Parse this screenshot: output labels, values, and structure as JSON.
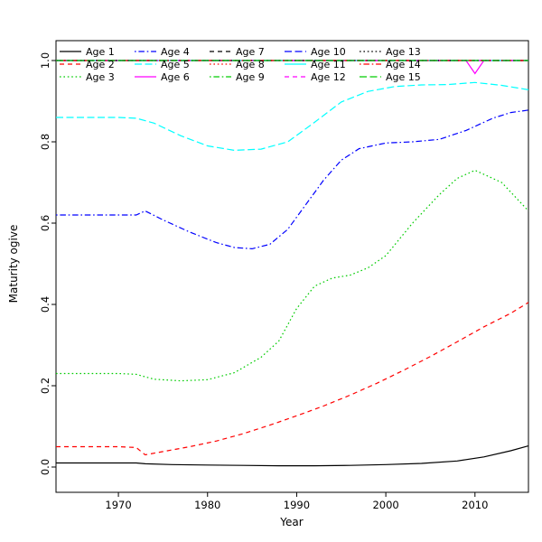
{
  "figure": {
    "background": "#FFFFFF"
  },
  "chart_data": {
    "type": "line",
    "title": "",
    "xlabel": "Year",
    "ylabel": "Maturity ogive",
    "xlim": [
      1963,
      2016
    ],
    "ylim": [
      0,
      1
    ],
    "xticks": [
      1970,
      1980,
      1990,
      2000,
      2010
    ],
    "xtick_labels": [
      "1970",
      "1980",
      "1990",
      "2000",
      "2010"
    ],
    "yticks": [
      0,
      0.2,
      0.4,
      0.6,
      0.8,
      1.0
    ],
    "ytick_labels": [
      "0.0",
      "0.2",
      "0.4",
      "0.6",
      "0.8",
      "1.0"
    ],
    "grid": false,
    "legend": {
      "position": "top-left",
      "ncol": 5,
      "nrow": 3,
      "order": "column-major",
      "border": false
    },
    "series": [
      {
        "name": "Age 1",
        "color": "#000000",
        "linetype": "solid",
        "x": [
          1963,
          1967,
          1970,
          1972,
          1973,
          1976,
          1980,
          1984,
          1988,
          1992,
          1996,
          2000,
          2004,
          2008,
          2011,
          2014,
          2016
        ],
        "y": [
          0.01,
          0.01,
          0.01,
          0.01,
          0.008,
          0.006,
          0.005,
          0.004,
          0.003,
          0.003,
          0.004,
          0.006,
          0.009,
          0.015,
          0.025,
          0.04,
          0.052
        ]
      },
      {
        "name": "Age 2",
        "color": "#FF0000",
        "linetype": "dashed",
        "x": [
          1963,
          1967,
          1970,
          1972,
          1973,
          1975,
          1978,
          1981,
          1984,
          1987,
          1990,
          1993,
          1996,
          1999,
          2002,
          2005,
          2008,
          2011,
          2014,
          2016
        ],
        "y": [
          0.05,
          0.05,
          0.05,
          0.048,
          0.03,
          0.038,
          0.05,
          0.064,
          0.082,
          0.103,
          0.126,
          0.15,
          0.177,
          0.206,
          0.238,
          0.272,
          0.308,
          0.345,
          0.378,
          0.405
        ]
      },
      {
        "name": "Age 3",
        "color": "#00CC00",
        "linetype": "dotted",
        "x": [
          1963,
          1967,
          1970,
          1972,
          1974,
          1977,
          1980,
          1983,
          1986,
          1988,
          1990,
          1992,
          1994,
          1996,
          1998,
          2000,
          2003,
          2006,
          2008,
          2010,
          2013,
          2016
        ],
        "y": [
          0.23,
          0.23,
          0.23,
          0.228,
          0.216,
          0.212,
          0.215,
          0.232,
          0.27,
          0.31,
          0.39,
          0.445,
          0.465,
          0.472,
          0.49,
          0.52,
          0.6,
          0.67,
          0.71,
          0.73,
          0.7,
          0.63
        ]
      },
      {
        "name": "Age 4",
        "color": "#0000FF",
        "linetype": "dotdash",
        "x": [
          1963,
          1967,
          1970,
          1972,
          1973,
          1975,
          1978,
          1981,
          1983,
          1985,
          1987,
          1989,
          1991,
          1993,
          1995,
          1997,
          2000,
          2003,
          2006,
          2009,
          2012,
          2014,
          2016
        ],
        "y": [
          0.62,
          0.62,
          0.62,
          0.62,
          0.63,
          0.608,
          0.578,
          0.552,
          0.54,
          0.537,
          0.548,
          0.585,
          0.645,
          0.705,
          0.755,
          0.783,
          0.797,
          0.8,
          0.806,
          0.828,
          0.858,
          0.872,
          0.878
        ]
      },
      {
        "name": "Age 5",
        "color": "#00FFFF",
        "linetype": "longdash",
        "x": [
          1963,
          1967,
          1970,
          1972,
          1974,
          1977,
          1980,
          1983,
          1986,
          1989,
          1992,
          1995,
          1998,
          2001,
          2004,
          2007,
          2010,
          2013,
          2016
        ],
        "y": [
          0.86,
          0.86,
          0.86,
          0.858,
          0.846,
          0.815,
          0.79,
          0.779,
          0.782,
          0.8,
          0.848,
          0.898,
          0.924,
          0.936,
          0.94,
          0.941,
          0.946,
          0.939,
          0.928
        ]
      },
      {
        "name": "Age 6",
        "color": "#FF00FF",
        "linetype": "solid",
        "x": [
          1963,
          1985,
          2007,
          2009,
          2010,
          2011,
          2013,
          2016
        ],
        "y": [
          1.0,
          1.0,
          1.0,
          1.0,
          0.968,
          1.0,
          1.0,
          1.0
        ]
      },
      {
        "name": "Age 7",
        "color": "#000000",
        "linetype": "dashed",
        "x": [
          1963,
          2016
        ],
        "y": [
          1.0,
          1.0
        ]
      },
      {
        "name": "Age 8",
        "color": "#FF0000",
        "linetype": "dotted",
        "x": [
          1963,
          2016
        ],
        "y": [
          1.0,
          1.0
        ]
      },
      {
        "name": "Age 9",
        "color": "#00CC00",
        "linetype": "dotdash",
        "x": [
          1963,
          2016
        ],
        "y": [
          1.0,
          1.0
        ]
      },
      {
        "name": "Age 10",
        "color": "#0000FF",
        "linetype": "longdash",
        "x": [
          1963,
          2016
        ],
        "y": [
          1.0,
          1.0
        ]
      },
      {
        "name": "Age 11",
        "color": "#00FFFF",
        "linetype": "solid",
        "x": [
          1963,
          2016
        ],
        "y": [
          1.0,
          1.0
        ]
      },
      {
        "name": "Age 12",
        "color": "#FF00FF",
        "linetype": "dashed",
        "x": [
          1963,
          2016
        ],
        "y": [
          1.0,
          1.0
        ]
      },
      {
        "name": "Age 13",
        "color": "#000000",
        "linetype": "dotted",
        "x": [
          1963,
          2016
        ],
        "y": [
          1.0,
          1.0
        ]
      },
      {
        "name": "Age 14",
        "color": "#FF0000",
        "linetype": "dotdash",
        "x": [
          1963,
          2016
        ],
        "y": [
          1.0,
          1.0
        ]
      },
      {
        "name": "Age 15",
        "color": "#00CC00",
        "linetype": "longdash",
        "x": [
          1963,
          2016
        ],
        "y": [
          1.0,
          1.0
        ]
      }
    ]
  }
}
